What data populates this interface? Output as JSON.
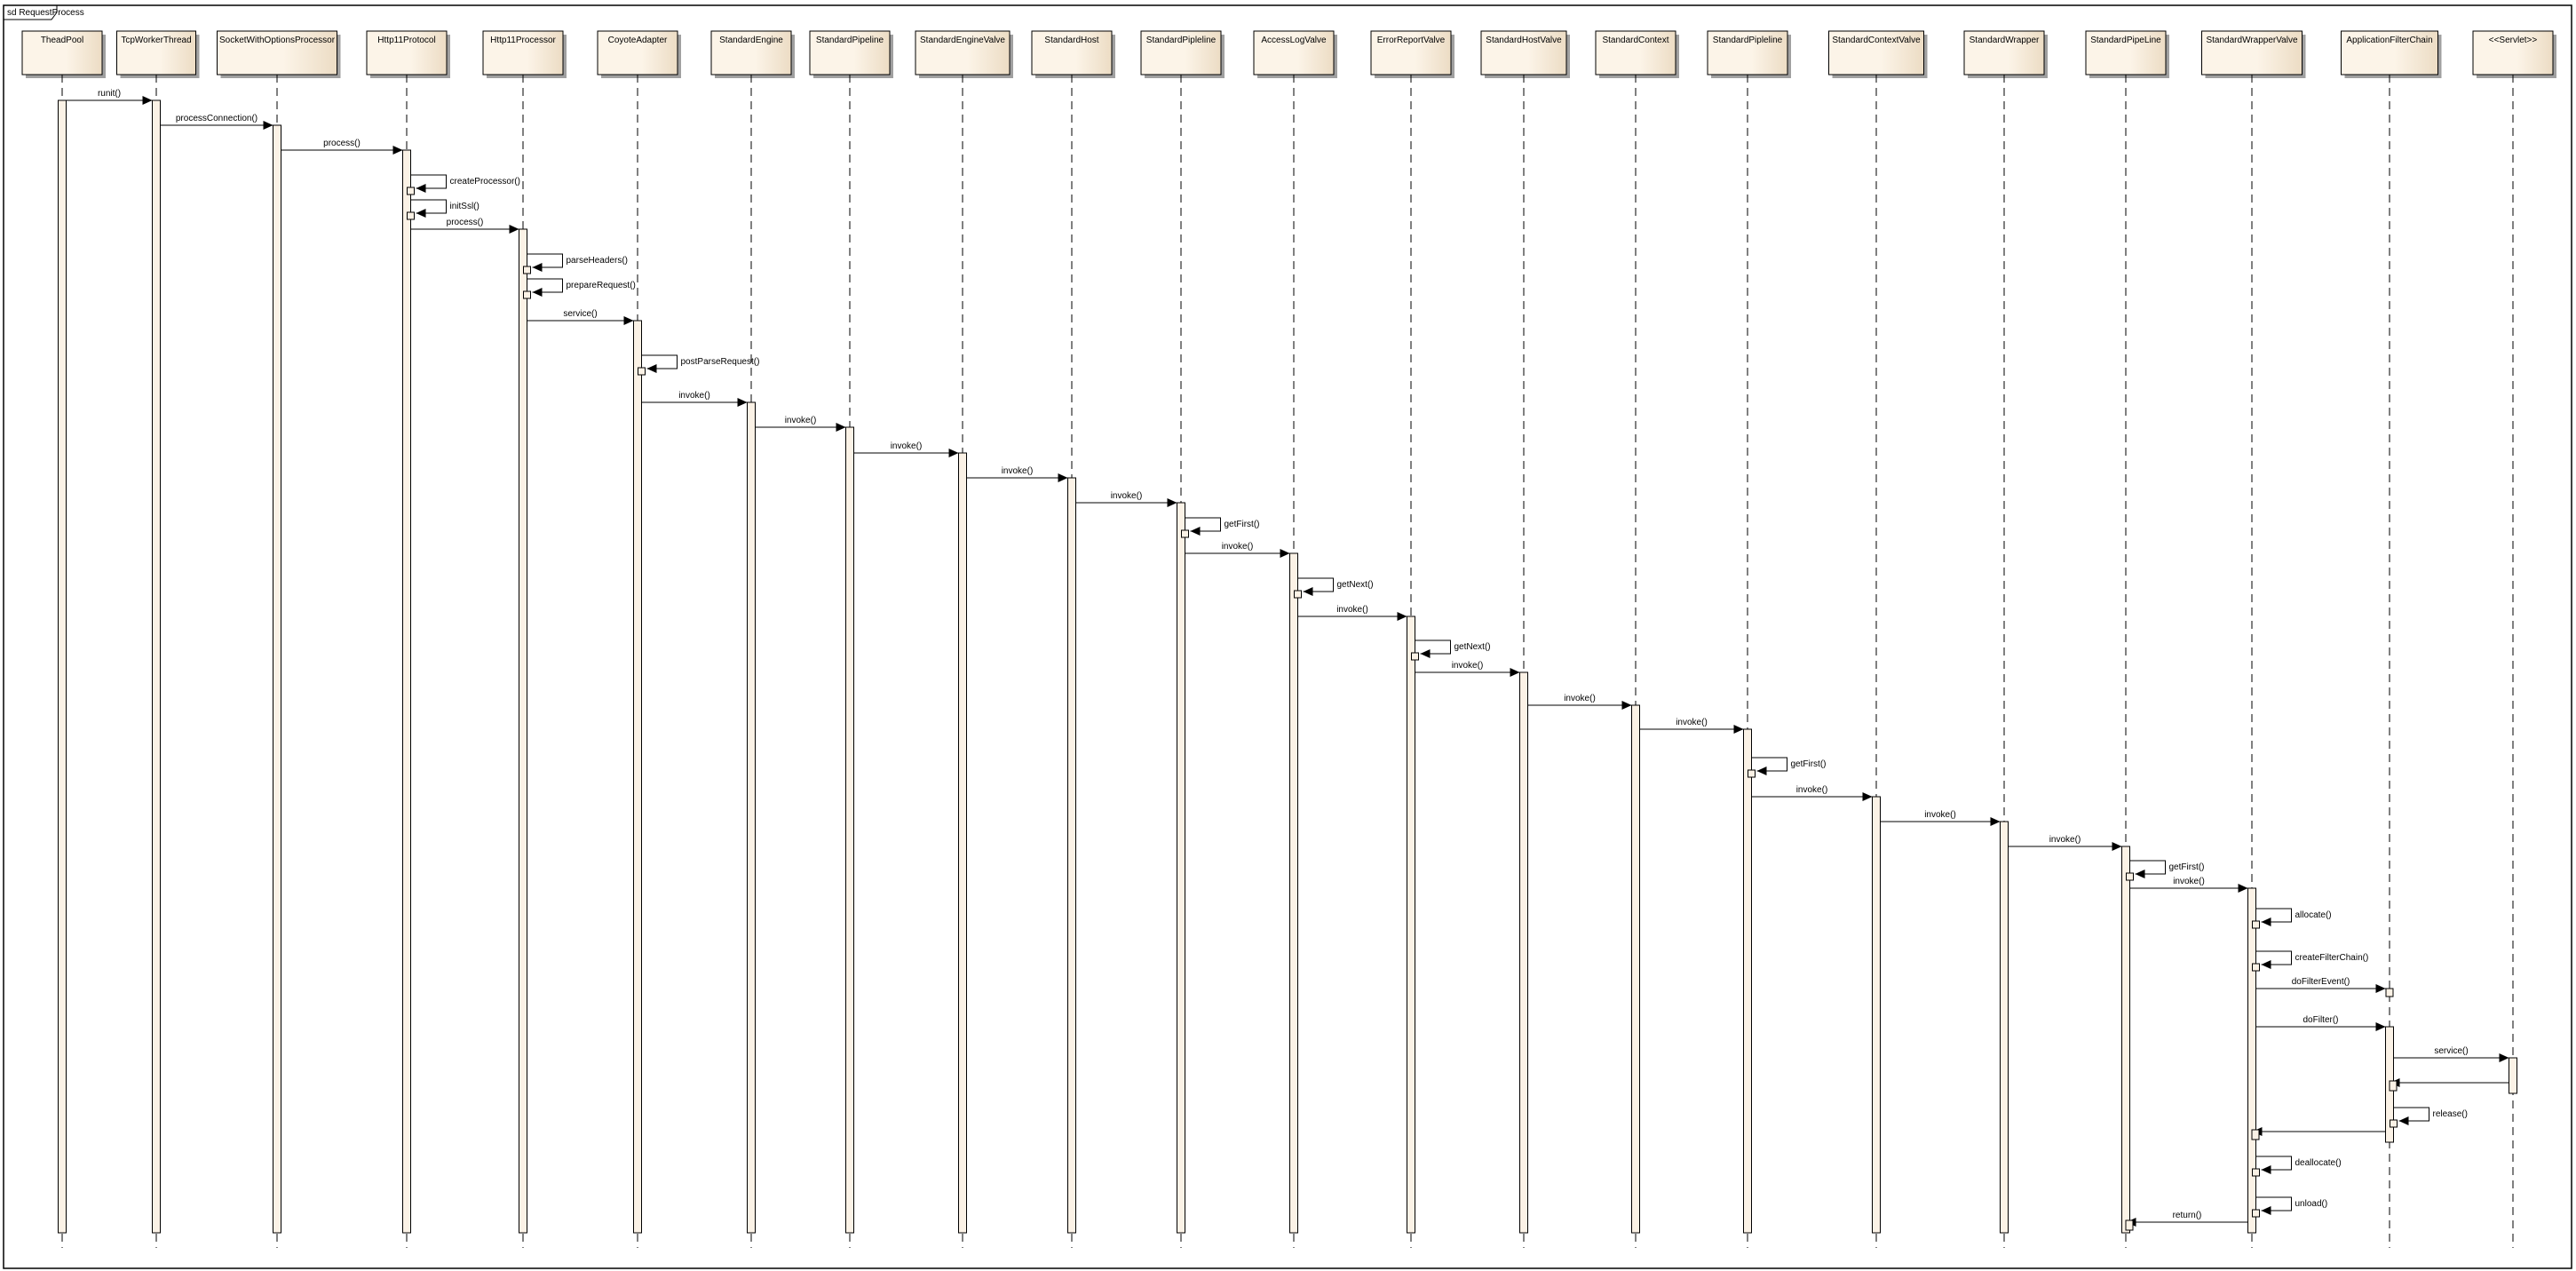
{
  "frame": {
    "label": "sd RequestProcess"
  },
  "colors": {
    "box_fill_light": "#fcf4e8",
    "box_fill_dark": "#ecdcc4",
    "activation_fill": "#fbf2e6",
    "line": "#000000",
    "shadow": "#a0a0a0"
  },
  "lifelines": [
    {
      "name": "TheadPool"
    },
    {
      "name": "TcpWorkerThread"
    },
    {
      "name": "SocketWithOptionsProcessor"
    },
    {
      "name": "Http11Protocol"
    },
    {
      "name": "Http11Processor"
    },
    {
      "name": "CoyoteAdapter"
    },
    {
      "name": "StandardEngine"
    },
    {
      "name": "StandardPipeline"
    },
    {
      "name": "StandardEngineValve"
    },
    {
      "name": "StandardHost"
    },
    {
      "name": "StandardPipleline"
    },
    {
      "name": "AccessLogValve"
    },
    {
      "name": "ErrorReportValve"
    },
    {
      "name": "StandardHostValve"
    },
    {
      "name": "StandardContext"
    },
    {
      "name": "StandardPipleline"
    },
    {
      "name": "StandardContextValve"
    },
    {
      "name": "StandardWrapper"
    },
    {
      "name": "StandardPipeLine"
    },
    {
      "name": "StandardWrapperValve"
    },
    {
      "name": "ApplicationFilterChain"
    },
    {
      "name": "<<Servlet>>"
    }
  ],
  "messages": [
    {
      "from": 0,
      "to": 1,
      "label": "runit()"
    },
    {
      "from": 1,
      "to": 2,
      "label": "processConnection()"
    },
    {
      "from": 2,
      "to": 3,
      "label": "process()"
    },
    {
      "from": 3,
      "to": 3,
      "label": "createProcessor()"
    },
    {
      "from": 3,
      "to": 3,
      "label": "initSsl()"
    },
    {
      "from": 3,
      "to": 4,
      "label": "process()"
    },
    {
      "from": 4,
      "to": 4,
      "label": "parseHeaders()"
    },
    {
      "from": 4,
      "to": 4,
      "label": "prepareRequest()"
    },
    {
      "from": 4,
      "to": 5,
      "label": "service()"
    },
    {
      "from": 5,
      "to": 5,
      "label": "postParseRequest()"
    },
    {
      "from": 5,
      "to": 6,
      "label": "invoke()"
    },
    {
      "from": 6,
      "to": 7,
      "label": "invoke()"
    },
    {
      "from": 7,
      "to": 8,
      "label": "invoke()"
    },
    {
      "from": 8,
      "to": 9,
      "label": "invoke()"
    },
    {
      "from": 9,
      "to": 10,
      "label": "invoke()"
    },
    {
      "from": 10,
      "to": 10,
      "label": "getFirst()"
    },
    {
      "from": 10,
      "to": 11,
      "label": "invoke()"
    },
    {
      "from": 11,
      "to": 11,
      "label": "getNext()"
    },
    {
      "from": 11,
      "to": 12,
      "label": "invoke()"
    },
    {
      "from": 12,
      "to": 12,
      "label": "getNext()"
    },
    {
      "from": 12,
      "to": 13,
      "label": "invoke()"
    },
    {
      "from": 13,
      "to": 14,
      "label": "invoke()"
    },
    {
      "from": 14,
      "to": 15,
      "label": "invoke()"
    },
    {
      "from": 15,
      "to": 15,
      "label": "getFirst()"
    },
    {
      "from": 15,
      "to": 16,
      "label": "invoke()"
    },
    {
      "from": 16,
      "to": 17,
      "label": "invoke()"
    },
    {
      "from": 17,
      "to": 18,
      "label": "invoke()"
    },
    {
      "from": 18,
      "to": 18,
      "label": "getFirst()"
    },
    {
      "from": 18,
      "to": 19,
      "label": "invoke()"
    },
    {
      "from": 19,
      "to": 19,
      "label": "allocate()"
    },
    {
      "from": 19,
      "to": 19,
      "label": "createFilterChain()"
    },
    {
      "from": 19,
      "to": 20,
      "label": "doFilterEvent()"
    },
    {
      "from": 19,
      "to": 20,
      "label": "doFilter()"
    },
    {
      "from": 20,
      "to": 21,
      "label": "service()"
    },
    {
      "from": 21,
      "to": 20,
      "label": ""
    },
    {
      "from": 20,
      "to": 20,
      "label": "release()"
    },
    {
      "from": 20,
      "to": 19,
      "label": ""
    },
    {
      "from": 19,
      "to": 19,
      "label": "deallocate()"
    },
    {
      "from": 19,
      "to": 19,
      "label": "unload()"
    },
    {
      "from": 19,
      "to": 18,
      "label": "return()"
    }
  ]
}
